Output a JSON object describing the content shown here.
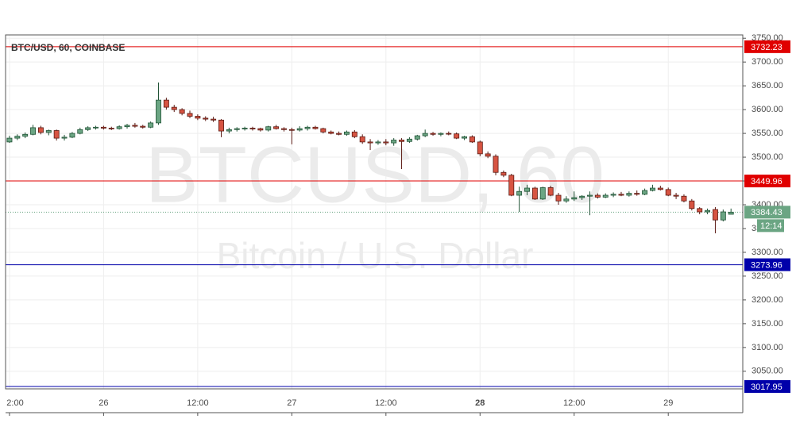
{
  "chart_data": {
    "type": "candlestick",
    "title": "BTC/USD, 60, COINBASE",
    "watermark_title": "BTCUSD, 60",
    "watermark_subtitle": "Bitcoin / U.S. Dollar",
    "up_color": "#6ba583",
    "down_color": "#d75442",
    "up_border": "#225437",
    "down_border": "#5b1a13",
    "grid": true,
    "x": [
      0,
      1,
      2,
      3,
      4,
      5,
      6,
      7,
      8,
      9,
      10,
      11,
      12,
      13,
      14,
      15,
      16,
      17,
      18,
      19,
      20,
      21,
      22,
      23,
      24,
      25,
      26,
      27,
      28,
      29,
      30,
      31,
      32,
      33,
      34,
      35,
      36,
      37,
      38,
      39,
      40,
      41,
      42,
      43,
      44,
      45,
      46,
      47,
      48,
      49,
      50,
      51,
      52,
      53,
      54,
      55,
      56,
      57,
      58,
      59,
      60,
      61,
      62,
      63,
      64,
      65,
      66,
      67,
      68,
      69,
      70,
      71,
      72,
      73,
      74,
      75,
      76,
      77,
      78,
      79,
      80,
      81,
      82,
      83,
      84,
      85,
      86,
      87,
      88,
      89,
      90,
      91,
      92
    ],
    "open": [
      3532,
      3540,
      3544,
      3548,
      3562,
      3552,
      3556,
      3540,
      3542,
      3550,
      3558,
      3562,
      3563,
      3561,
      3560,
      3564,
      3567,
      3565,
      3563,
      3572,
      3620,
      3605,
      3600,
      3592,
      3586,
      3582,
      3580,
      3578,
      3555,
      3558,
      3560,
      3561,
      3560,
      3557,
      3564,
      3560,
      3558,
      3557,
      3560,
      3563,
      3560,
      3553,
      3550,
      3548,
      3553,
      3543,
      3532,
      3530,
      3532,
      3530,
      3536,
      3533,
      3538,
      3545,
      3550,
      3548,
      3550,
      3549,
      3540,
      3543,
      3532,
      3507,
      3502,
      3468,
      3462,
      3420,
      3428,
      3435,
      3412,
      3436,
      3420,
      3408,
      3412,
      3415,
      3418,
      3420,
      3416,
      3420,
      3422,
      3420,
      3424,
      3422,
      3430,
      3435,
      3432,
      3420,
      3418,
      3408,
      3392,
      3385,
      3390,
      3368,
      3380
    ],
    "high": [
      3545,
      3548,
      3552,
      3568,
      3566,
      3558,
      3558,
      3547,
      3553,
      3562,
      3565,
      3566,
      3566,
      3564,
      3567,
      3570,
      3572,
      3568,
      3575,
      3657,
      3625,
      3610,
      3603,
      3598,
      3590,
      3586,
      3585,
      3580,
      3562,
      3563,
      3564,
      3564,
      3562,
      3566,
      3568,
      3563,
      3562,
      3565,
      3566,
      3566,
      3562,
      3556,
      3554,
      3556,
      3557,
      3548,
      3538,
      3536,
      3538,
      3540,
      3540,
      3542,
      3547,
      3558,
      3553,
      3552,
      3554,
      3552,
      3545,
      3546,
      3535,
      3512,
      3506,
      3472,
      3465,
      3438,
      3442,
      3438,
      3438,
      3440,
      3425,
      3418,
      3428,
      3420,
      3428,
      3424,
      3424,
      3426,
      3427,
      3428,
      3430,
      3434,
      3442,
      3440,
      3436,
      3425,
      3422,
      3412,
      3395,
      3392,
      3395,
      3390,
      3392
    ],
    "low": [
      3530,
      3536,
      3540,
      3546,
      3548,
      3546,
      3535,
      3535,
      3540,
      3548,
      3555,
      3558,
      3558,
      3557,
      3558,
      3560,
      3562,
      3560,
      3561,
      3568,
      3600,
      3595,
      3588,
      3582,
      3578,
      3576,
      3574,
      3542,
      3550,
      3554,
      3556,
      3556,
      3554,
      3554,
      3558,
      3554,
      3527,
      3554,
      3556,
      3558,
      3550,
      3548,
      3546,
      3545,
      3540,
      3528,
      3515,
      3526,
      3525,
      3524,
      3475,
      3530,
      3535,
      3542,
      3545,
      3544,
      3546,
      3538,
      3536,
      3530,
      3502,
      3498,
      3462,
      3458,
      3418,
      3385,
      3420,
      3410,
      3410,
      3418,
      3400,
      3404,
      3408,
      3410,
      3378,
      3413,
      3414,
      3416,
      3418,
      3417,
      3419,
      3420,
      3428,
      3430,
      3418,
      3412,
      3405,
      3388,
      3380,
      3380,
      3340,
      3365,
      3380
    ],
    "close": [
      3540,
      3544,
      3548,
      3562,
      3552,
      3556,
      3540,
      3542,
      3550,
      3558,
      3562,
      3563,
      3561,
      3560,
      3564,
      3567,
      3565,
      3563,
      3572,
      3620,
      3605,
      3600,
      3592,
      3586,
      3582,
      3580,
      3578,
      3555,
      3558,
      3560,
      3561,
      3560,
      3557,
      3564,
      3560,
      3558,
      3557,
      3560,
      3563,
      3560,
      3553,
      3550,
      3548,
      3553,
      3543,
      3532,
      3530,
      3532,
      3530,
      3536,
      3533,
      3538,
      3545,
      3550,
      3548,
      3550,
      3549,
      3540,
      3543,
      3532,
      3507,
      3502,
      3468,
      3462,
      3420,
      3428,
      3435,
      3412,
      3436,
      3420,
      3408,
      3412,
      3415,
      3418,
      3420,
      3416,
      3420,
      3422,
      3420,
      3424,
      3422,
      3430,
      3435,
      3432,
      3420,
      3418,
      3408,
      3392,
      3385,
      3388,
      3368,
      3385,
      3384.43
    ],
    "xlim": [
      -0.5,
      93.5
    ],
    "xticks": [
      {
        "value": 0,
        "label": "2:00"
      },
      {
        "value": 12,
        "label": "26"
      },
      {
        "value": 24,
        "label": "12:00"
      },
      {
        "value": 36,
        "label": "27"
      },
      {
        "value": 48,
        "label": "12:00"
      },
      {
        "value": 60,
        "label": "28"
      },
      {
        "value": 72,
        "label": "12:00"
      },
      {
        "value": 84,
        "label": "29"
      }
    ],
    "ylim": [
      3013,
      3757
    ],
    "yticks": [
      {
        "value": 3050,
        "label": "3050.00"
      },
      {
        "value": 3100,
        "label": "3100.00"
      },
      {
        "value": 3150,
        "label": "3150.00"
      },
      {
        "value": 3200,
        "label": "3200.00"
      },
      {
        "value": 3250,
        "label": "3250.00"
      },
      {
        "value": 3300,
        "label": "3300.00"
      },
      {
        "value": 3350,
        "label": "3350.00"
      },
      {
        "value": 3400,
        "label": "3400.00"
      },
      {
        "value": 3450,
        "label": "3450.00"
      },
      {
        "value": 3500,
        "label": "3500.00"
      },
      {
        "value": 3550,
        "label": "3550.00"
      },
      {
        "value": 3600,
        "label": "3600.00"
      },
      {
        "value": 3650,
        "label": "3650.00"
      },
      {
        "value": 3700,
        "label": "3700.00"
      },
      {
        "value": 3750,
        "label": "3750.00"
      }
    ],
    "price_lines": [
      {
        "value": 3732.23,
        "color": "#e00000"
      },
      {
        "value": 3449.96,
        "color": "#e00000"
      },
      {
        "value": 3273.96,
        "color": "#0000aa"
      },
      {
        "value": 3017.95,
        "color": "#0000aa"
      }
    ],
    "last_price": {
      "value": 3384.43,
      "color": "#6ba583",
      "countdown": "12:14"
    }
  }
}
